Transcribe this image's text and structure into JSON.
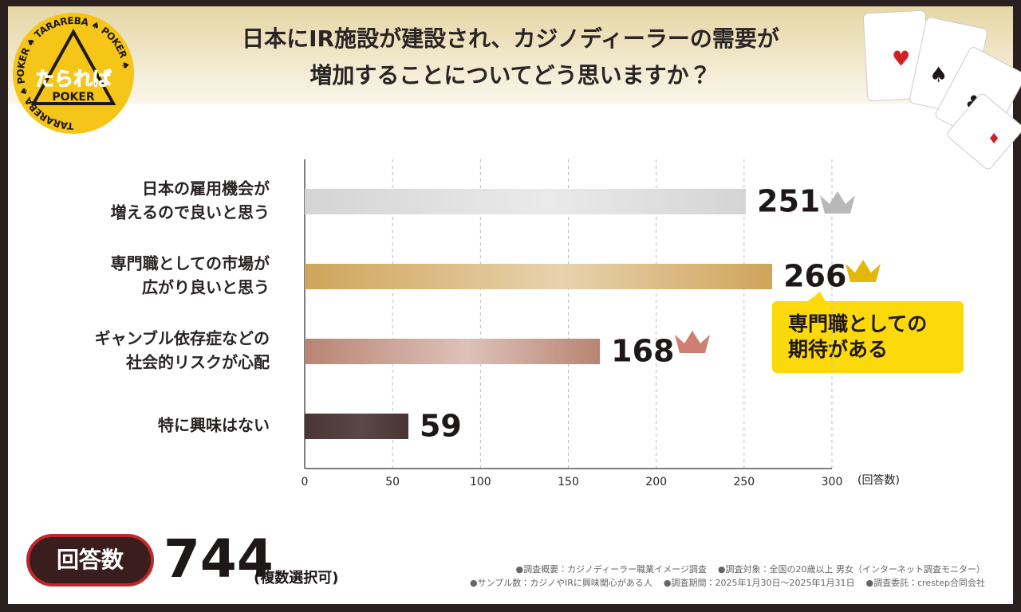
{
  "chart_data": {
    "type": "bar",
    "orientation": "horizontal",
    "title": [
      "日本にIR施設が建設され、カジノディーラーの需要が",
      "増加することについてどう思いますか？"
    ],
    "categories": [
      [
        "日本の雇用機会が",
        "増えるので良いと思う"
      ],
      [
        "専門職としての市場が",
        "広がり良いと思う"
      ],
      [
        "ギャンブル依存症などの",
        "社会的リスクが心配"
      ],
      [
        "特に興味はない"
      ]
    ],
    "values": [
      251,
      266,
      168,
      59
    ],
    "colors": [
      "#d4d4d4",
      "#cfa45a",
      "#b98472",
      "#4a3434"
    ],
    "xlim": [
      0,
      300
    ],
    "xticks": [
      0,
      50,
      100,
      150,
      200,
      250,
      300
    ],
    "x_unit": "(回答数)",
    "grid": true,
    "annotation": [
      "専門職としての",
      "期待がある"
    ]
  },
  "logo": {
    "name": "たられば",
    "sub": "POKER",
    "ring": "TARAREBA ♠ POKER ♠ TARAREBA ♠ POKER ♠"
  },
  "footer": {
    "badge": "回答数",
    "total": "744",
    "total_note": "(複数選択可)",
    "notes": [
      [
        "●調査概要：カジノディーラー職業イメージ調査",
        "●調査対象：全国の20歳以上 男女（インターネット調査モニター）"
      ],
      [
        "●サンプル数：カジノやIRに興味関心がある人",
        "●調査期間：2025年1月30日〜2025年1月31日",
        "●調査委託：crestep合同会社"
      ]
    ]
  }
}
